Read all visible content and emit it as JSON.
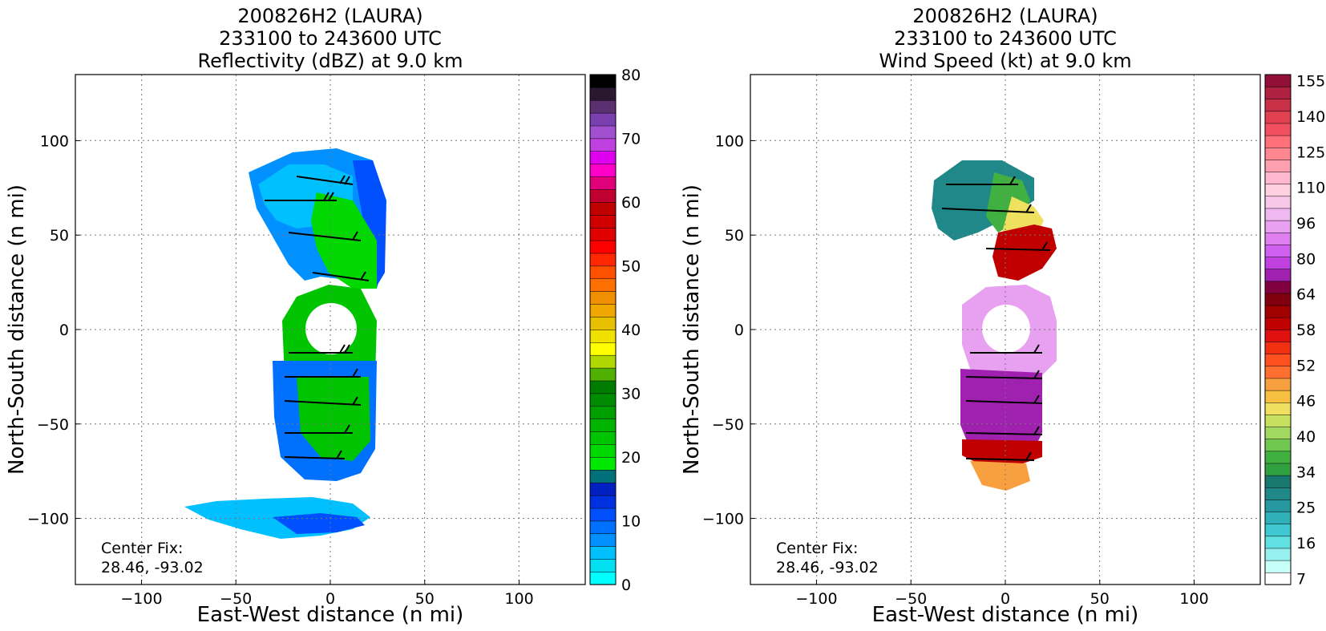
{
  "chart_data": [
    {
      "type": "heatmap",
      "title": [
        "200826H2 (LAURA)",
        "233100 to 243600 UTC",
        "Reflectivity (dBZ) at 9.0 km"
      ],
      "xlabel": "East-West distance (n mi)",
      "ylabel": "North-South distance (n mi)",
      "xlim": [
        -135,
        135
      ],
      "ylim": [
        -135,
        135
      ],
      "xticks": [
        -100,
        -50,
        0,
        50,
        100
      ],
      "yticks": [
        -100,
        -50,
        0,
        50,
        100
      ],
      "tick_labels_x": [
        "−100",
        "−50",
        "0",
        "50",
        "100"
      ],
      "tick_labels_y": [
        "−100",
        "−50",
        "0",
        "50",
        "100"
      ],
      "grid": true,
      "annotation": [
        "Center Fix:",
        "28.46, -93.02"
      ],
      "colorbar": {
        "min": 0,
        "max": 80,
        "tick_values": [
          0,
          10,
          20,
          30,
          40,
          50,
          60,
          70,
          80
        ],
        "tick_labels": [
          "0",
          "10",
          "20",
          "30",
          "40",
          "50",
          "60",
          "70",
          "80"
        ],
        "colors": [
          "#00ffff",
          "#00e0f0",
          "#00c0ff",
          "#0090ff",
          "#0070ff",
          "#0050ff",
          "#0030e0",
          "#0020c0",
          "#00707a",
          "#00e800",
          "#00d800",
          "#00c400",
          "#00b400",
          "#00a000",
          "#008c00",
          "#007c00",
          "#50b000",
          "#b0d800",
          "#ffff00",
          "#f0e000",
          "#e8c000",
          "#f0a800",
          "#f09000",
          "#ff7000",
          "#ff5000",
          "#ff2800",
          "#ff0000",
          "#e00000",
          "#d00000",
          "#c00000",
          "#c00030",
          "#e0007a",
          "#ff00c8",
          "#e000f0",
          "#c040e0",
          "#a050d0",
          "#7a40b0",
          "#5a3070",
          "#2a1830",
          "#000000"
        ]
      }
    },
    {
      "type": "heatmap",
      "title": [
        "200826H2 (LAURA)",
        "233100 to 243600 UTC",
        "Wind Speed (kt) at 9.0 km"
      ],
      "xlabel": "East-West distance (n mi)",
      "ylabel": "North-South distance (n mi)",
      "xlim": [
        -135,
        135
      ],
      "ylim": [
        -135,
        135
      ],
      "xticks": [
        -100,
        -50,
        0,
        50,
        100
      ],
      "yticks": [
        -100,
        -50,
        0,
        50,
        100
      ],
      "tick_labels_x": [
        "−100",
        "−50",
        "0",
        "50",
        "100"
      ],
      "tick_labels_y": [
        "−100",
        "−50",
        "0",
        "50",
        "100"
      ],
      "grid": true,
      "annotation": [
        "Center Fix:",
        "28.46, -93.02"
      ],
      "colorbar": {
        "tick_labels": [
          "7",
          "16",
          "25",
          "34",
          "40",
          "46",
          "52",
          "58",
          "64",
          "80",
          "96",
          "110",
          "125",
          "140",
          "155"
        ],
        "colors": [
          "#ffffff",
          "#c8fff8",
          "#96f0f0",
          "#60e0e0",
          "#40c8d0",
          "#30b0b8",
          "#2898a0",
          "#208888",
          "#187870",
          "#30a040",
          "#40b040",
          "#70c850",
          "#a0d860",
          "#c8e060",
          "#f0e060",
          "#f8c040",
          "#f8a040",
          "#ff7030",
          "#ff5020",
          "#f03010",
          "#e01010",
          "#c00000",
          "#a00000",
          "#800010",
          "#800040",
          "#a020b0",
          "#c040e0",
          "#d060f0",
          "#e080f0",
          "#e8a0f0",
          "#f0b8f0",
          "#f8c8e8",
          "#ffd0e0",
          "#ffb8d0",
          "#ffa0b0",
          "#ff8890",
          "#ff7078",
          "#f05060",
          "#e04050",
          "#c83048",
          "#b02040",
          "#901038"
        ]
      }
    }
  ]
}
